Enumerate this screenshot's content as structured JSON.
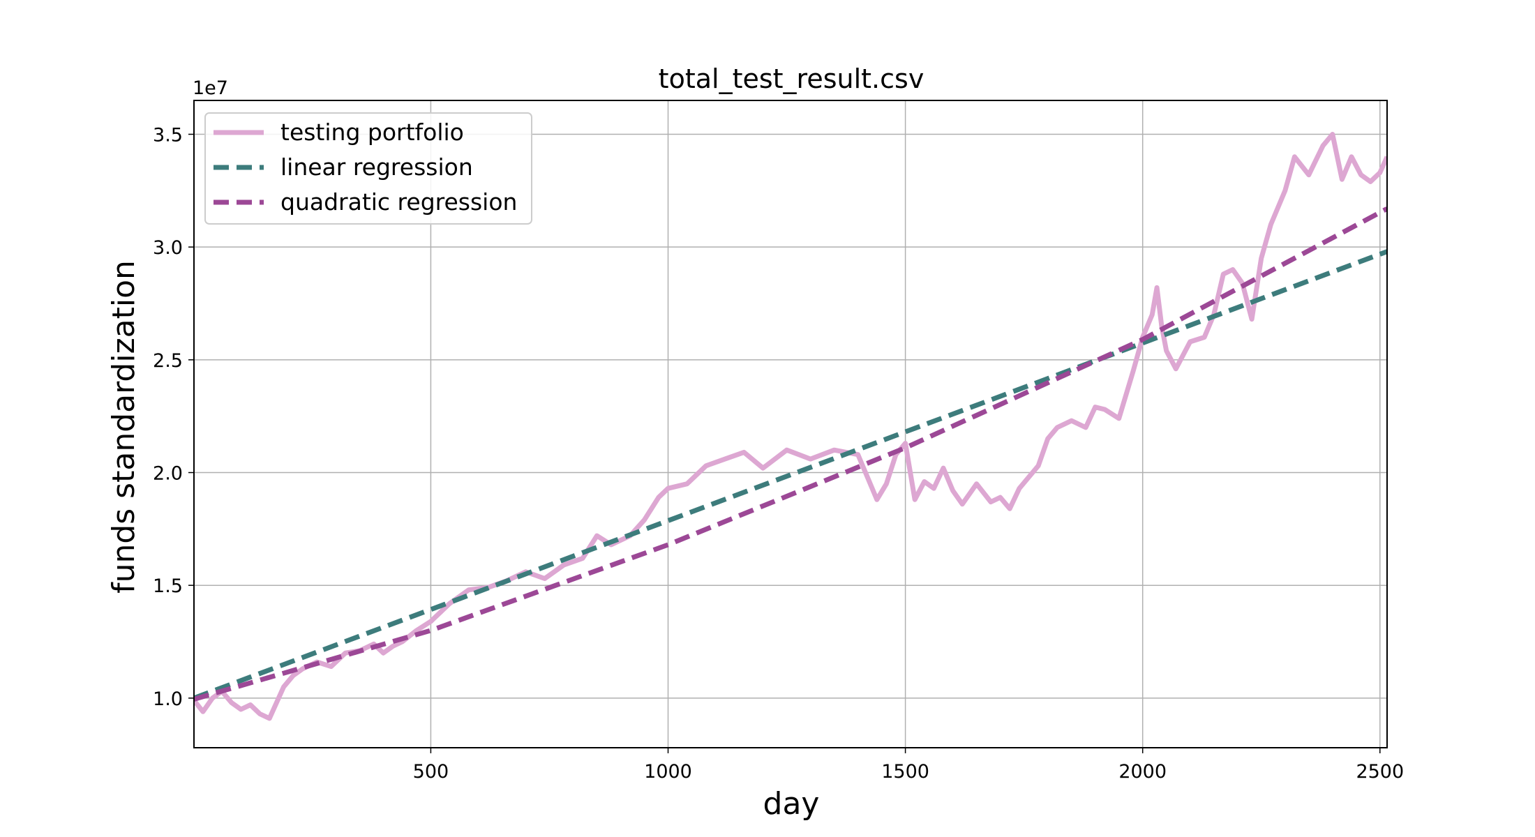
{
  "chart_data": {
    "type": "line",
    "title": "total_test_result.csv",
    "xlabel": "day",
    "ylabel": "funds standardization",
    "y_offset_label": "1e7",
    "xlim": [
      1,
      2515
    ],
    "ylim": [
      7.8,
      36.5
    ],
    "x_ticks": [
      500,
      1000,
      1500,
      2000,
      2500
    ],
    "x_tick_labels": [
      "500",
      "1000",
      "1500",
      "2000",
      "2500"
    ],
    "y_ticks": [
      10,
      15,
      20,
      25,
      30,
      35
    ],
    "y_tick_labels": [
      "1.0",
      "1.5",
      "2.0",
      "2.5",
      "3.0",
      "3.5"
    ],
    "grid": true,
    "legend": {
      "placement": "upper-left",
      "entries": [
        "testing portfolio",
        "linear regression",
        "quadratic regression"
      ]
    },
    "series": [
      {
        "name": "testing portfolio",
        "style": "solid",
        "color": "#DDA7D2",
        "x": [
          1,
          20,
          40,
          60,
          80,
          100,
          120,
          140,
          160,
          175,
          190,
          210,
          230,
          260,
          290,
          320,
          350,
          380,
          400,
          420,
          440,
          470,
          500,
          540,
          580,
          620,
          660,
          700,
          740,
          780,
          820,
          850,
          880,
          920,
          950,
          980,
          1000,
          1040,
          1080,
          1120,
          1160,
          1200,
          1250,
          1300,
          1350,
          1400,
          1420,
          1440,
          1460,
          1480,
          1500,
          1520,
          1540,
          1560,
          1580,
          1600,
          1620,
          1650,
          1680,
          1700,
          1720,
          1740,
          1780,
          1800,
          1820,
          1850,
          1880,
          1900,
          1920,
          1950,
          1980,
          2000,
          2020,
          2030,
          2040,
          2050,
          2070,
          2100,
          2130,
          2150,
          2170,
          2190,
          2210,
          2230,
          2250,
          2270,
          2300,
          2320,
          2350,
          2380,
          2400,
          2420,
          2440,
          2460,
          2480,
          2500,
          2515
        ],
        "y": [
          9.9,
          9.4,
          10.0,
          10.3,
          9.8,
          9.5,
          9.7,
          9.3,
          9.1,
          9.8,
          10.5,
          11.0,
          11.3,
          11.6,
          11.4,
          12.0,
          12.1,
          12.4,
          12.0,
          12.3,
          12.5,
          13.0,
          13.4,
          14.2,
          14.8,
          14.9,
          15.2,
          15.6,
          15.3,
          15.9,
          16.2,
          17.2,
          16.8,
          17.2,
          17.9,
          18.9,
          19.3,
          19.5,
          20.3,
          20.6,
          20.9,
          20.2,
          21.0,
          20.6,
          21.0,
          20.8,
          19.8,
          18.8,
          19.5,
          20.8,
          21.3,
          18.8,
          19.6,
          19.3,
          20.2,
          19.2,
          18.6,
          19.5,
          18.7,
          18.9,
          18.4,
          19.3,
          20.3,
          21.5,
          22.0,
          22.3,
          22.0,
          22.9,
          22.8,
          22.4,
          24.5,
          26.0,
          27.0,
          28.2,
          26.5,
          25.4,
          24.6,
          25.8,
          26.0,
          27.0,
          28.8,
          29.0,
          28.4,
          26.8,
          29.5,
          31.0,
          32.5,
          34.0,
          33.2,
          34.5,
          35.0,
          33.0,
          34.0,
          33.2,
          32.9,
          33.3,
          34.0
        ]
      },
      {
        "name": "linear regression",
        "style": "dashed",
        "color": "#3D7C7C",
        "x": [
          1,
          2515
        ],
        "y": [
          10.0,
          29.8
        ]
      },
      {
        "name": "quadratic regression",
        "style": "dashed",
        "color": "#9C4896",
        "x": [
          1,
          500,
          1000,
          1500,
          2000,
          2515
        ],
        "y": [
          9.95,
          13.0,
          16.8,
          21.1,
          25.9,
          31.7
        ]
      }
    ]
  }
}
